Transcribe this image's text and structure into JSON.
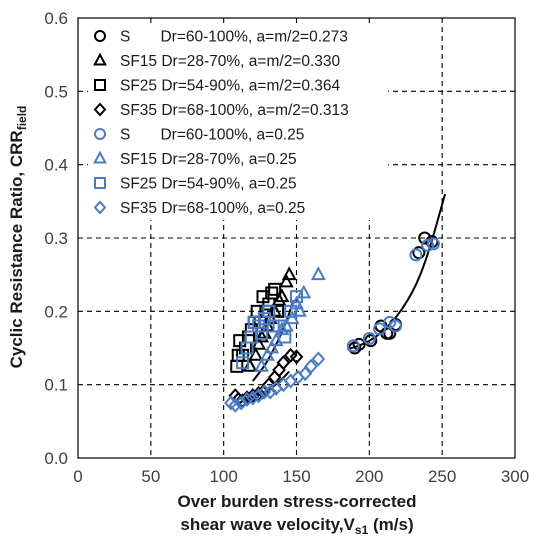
{
  "chart_data": {
    "type": "scatter",
    "xlabel_line1": "Over burden stress-corrected",
    "xlabel_line2": "shear wave velocity,V",
    "xlabel_sub": "s1",
    "xlabel_unit": " (m/s)",
    "ylabel_main": "Cyclic Resistance Ratio, CRR",
    "ylabel_sub": "field",
    "xlim": [
      0,
      300
    ],
    "ylim": [
      0,
      0.6
    ],
    "xticks": [
      "0",
      "50",
      "100",
      "150",
      "200",
      "250",
      "300"
    ],
    "yticks": [
      "0.0",
      "0.1",
      "0.2",
      "0.3",
      "0.4",
      "0.5",
      "0.6"
    ],
    "xtick_values": [
      0,
      50,
      100,
      150,
      200,
      250,
      300
    ],
    "ytick_values": [
      0,
      0.1,
      0.2,
      0.3,
      0.4,
      0.5,
      0.6
    ],
    "grid": {
      "vertical_dashed_at": [
        50,
        100,
        150,
        200,
        250
      ],
      "horizontal_dashed_at": [
        0.1,
        0.2,
        0.3,
        0.4,
        0.5
      ]
    },
    "legend_position": "top-left",
    "colors": {
      "black": "#000000",
      "blue": "#4a7bc8",
      "gridline": "#000000"
    },
    "series": [
      {
        "name": "S       Dr=60-100%, a=m/2=0.273",
        "marker": "circle",
        "color": "black",
        "points": [
          [
            190,
            0.15
          ],
          [
            193,
            0.155
          ],
          [
            201,
            0.16
          ],
          [
            208,
            0.18
          ],
          [
            212,
            0.17
          ],
          [
            214,
            0.17
          ],
          [
            218,
            0.182
          ],
          [
            234,
            0.28
          ],
          [
            238,
            0.3
          ],
          [
            243,
            0.295
          ]
        ]
      },
      {
        "name": "SF15 Dr=28-70%, a=m/2=0.330",
        "marker": "triangle",
        "color": "black",
        "points": [
          [
            118,
            0.125
          ],
          [
            122,
            0.14
          ],
          [
            124,
            0.155
          ],
          [
            126,
            0.165
          ],
          [
            128,
            0.17
          ],
          [
            130,
            0.18
          ],
          [
            132,
            0.19
          ],
          [
            135,
            0.2
          ],
          [
            138,
            0.215
          ],
          [
            140,
            0.22
          ],
          [
            143,
            0.24
          ],
          [
            145,
            0.25
          ]
        ]
      },
      {
        "name": "SF25 Dr=54-90%, a=m/2=0.364",
        "marker": "square",
        "color": "black",
        "points": [
          [
            109,
            0.125
          ],
          [
            110,
            0.14
          ],
          [
            111,
            0.16
          ],
          [
            113,
            0.14
          ],
          [
            115,
            0.15
          ],
          [
            117,
            0.165
          ],
          [
            119,
            0.175
          ],
          [
            121,
            0.185
          ],
          [
            123,
            0.2
          ],
          [
            125,
            0.185
          ],
          [
            127,
            0.22
          ],
          [
            129,
            0.2
          ],
          [
            131,
            0.21
          ],
          [
            133,
            0.225
          ],
          [
            135,
            0.23
          ],
          [
            137,
            0.2
          ]
        ]
      },
      {
        "name": "SF35 Dr=68-100%, a=m/2=0.313",
        "marker": "diamond",
        "color": "black",
        "points": [
          [
            108,
            0.085
          ],
          [
            110,
            0.08
          ],
          [
            113,
            0.078
          ],
          [
            116,
            0.082
          ],
          [
            120,
            0.085
          ],
          [
            124,
            0.088
          ],
          [
            127,
            0.09
          ],
          [
            131,
            0.1
          ],
          [
            135,
            0.11
          ],
          [
            138,
            0.12
          ],
          [
            141,
            0.13
          ],
          [
            146,
            0.14
          ],
          [
            150,
            0.138
          ]
        ]
      },
      {
        "name": "S       Dr=60-100%, a=0.25",
        "marker": "circle",
        "color": "blue",
        "points": [
          [
            189,
            0.153
          ],
          [
            200,
            0.163
          ],
          [
            207,
            0.176
          ],
          [
            214,
            0.185
          ],
          [
            218,
            0.18
          ],
          [
            232,
            0.277
          ],
          [
            240,
            0.29
          ],
          [
            244,
            0.292
          ]
        ]
      },
      {
        "name": "SF15 Dr=28-70%, a=0.25",
        "marker": "triangle",
        "color": "blue",
        "points": [
          [
            126,
            0.125
          ],
          [
            130,
            0.14
          ],
          [
            133,
            0.15
          ],
          [
            136,
            0.16
          ],
          [
            140,
            0.175
          ],
          [
            143,
            0.18
          ],
          [
            147,
            0.19
          ],
          [
            150,
            0.21
          ],
          [
            152,
            0.2
          ],
          [
            155,
            0.225
          ],
          [
            165,
            0.25
          ]
        ]
      },
      {
        "name": "SF25 Dr=54-90%, a=0.25",
        "marker": "square",
        "color": "blue",
        "points": [
          [
            113,
            0.13
          ],
          [
            116,
            0.15
          ],
          [
            119,
            0.165
          ],
          [
            121,
            0.185
          ],
          [
            124,
            0.18
          ],
          [
            126,
            0.17
          ],
          [
            128,
            0.19
          ],
          [
            131,
            0.2
          ],
          [
            134,
            0.18
          ],
          [
            138,
            0.18
          ],
          [
            142,
            0.165
          ],
          [
            146,
            0.2
          ],
          [
            150,
            0.22
          ]
        ]
      },
      {
        "name": "SF35 Dr=68-100%, a=0.25",
        "marker": "diamond",
        "color": "blue",
        "points": [
          [
            105,
            0.075
          ],
          [
            108,
            0.072
          ],
          [
            112,
            0.075
          ],
          [
            116,
            0.08
          ],
          [
            120,
            0.082
          ],
          [
            124,
            0.085
          ],
          [
            128,
            0.09
          ],
          [
            132,
            0.09
          ],
          [
            136,
            0.095
          ],
          [
            141,
            0.1
          ],
          [
            146,
            0.105
          ],
          [
            151,
            0.11
          ],
          [
            156,
            0.115
          ],
          [
            160,
            0.125
          ],
          [
            165,
            0.135
          ]
        ]
      }
    ],
    "trend_lines": [
      {
        "color": "black",
        "points": [
          [
            110,
            0.075
          ],
          [
            120,
            0.082
          ],
          [
            130,
            0.092
          ],
          [
            138,
            0.103
          ],
          [
            145,
            0.118
          ]
        ]
      },
      {
        "color": "black",
        "points": [
          [
            120,
            0.105
          ],
          [
            128,
            0.125
          ],
          [
            135,
            0.15
          ],
          [
            142,
            0.18
          ],
          [
            148,
            0.215
          ]
        ]
      },
      {
        "color": "black",
        "points": [
          [
            185,
            0.148
          ],
          [
            200,
            0.158
          ],
          [
            215,
            0.182
          ],
          [
            230,
            0.225
          ],
          [
            240,
            0.275
          ],
          [
            252,
            0.36
          ]
        ]
      }
    ]
  }
}
